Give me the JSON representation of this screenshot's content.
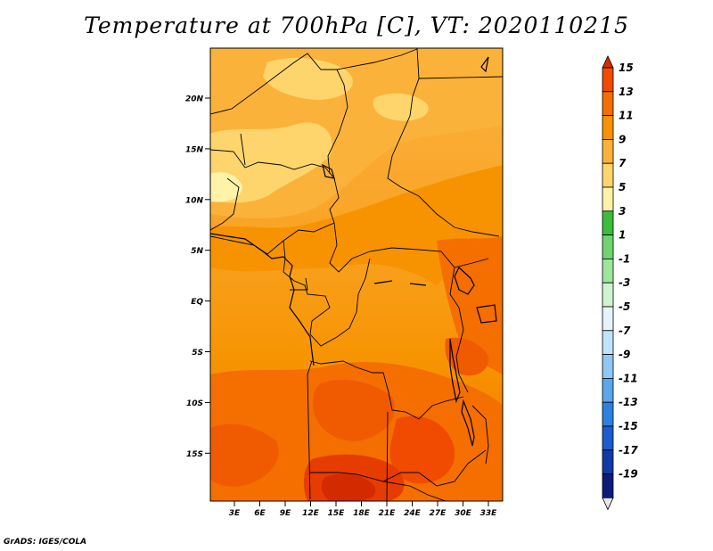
{
  "title": "Temperature at 700hPa [C], VT: 2020110215",
  "credit": "GrADS: IGES/COLA",
  "map": {
    "lat_ticks": [
      "20N",
      "15N",
      "10N",
      "5N",
      "EQ",
      "5S",
      "10S",
      "15S"
    ],
    "lon_ticks": [
      "3E",
      "6E",
      "9E",
      "12E",
      "15E",
      "18E",
      "21E",
      "24E",
      "27E",
      "30E",
      "33E"
    ]
  },
  "colorbar": {
    "labels": [
      "15",
      "13",
      "11",
      "9",
      "7",
      "5",
      "3",
      "1",
      "-1",
      "-3",
      "-5",
      "-7",
      "-9",
      "-11",
      "-13",
      "-15",
      "-17",
      "-19"
    ],
    "colors": [
      "#d32a00",
      "#f04b00",
      "#f46e00",
      "#f79300",
      "#fbb23a",
      "#fdd56c",
      "#fef3a8",
      "#3cbd3c",
      "#6fd36f",
      "#9ee59e",
      "#cff3cf",
      "#e4f4fa",
      "#bfe3f8",
      "#8fc9f3",
      "#5aa7ec",
      "#2f80e0",
      "#1c5ccc",
      "#123aa6",
      "#0d1c7c",
      "#e6e6f5"
    ]
  }
}
